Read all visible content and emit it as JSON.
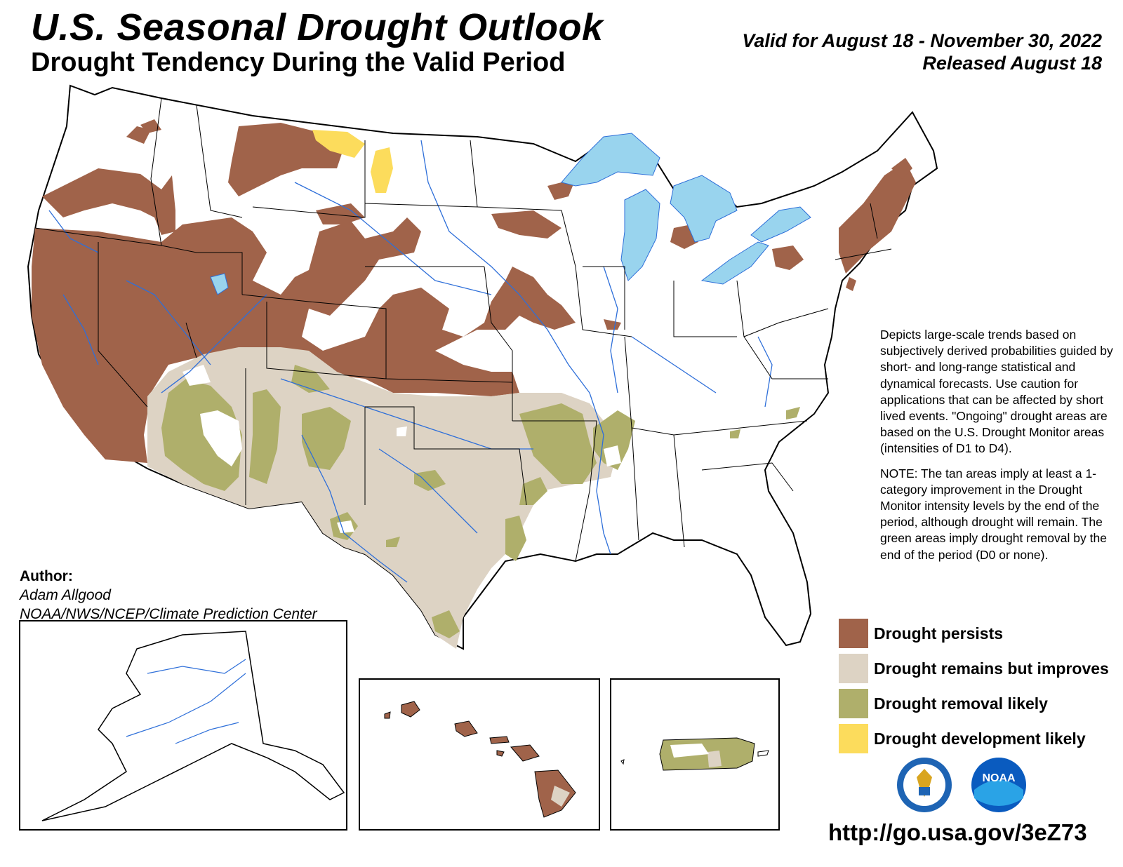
{
  "header": {
    "title": "U.S. Seasonal Drought Outlook",
    "subtitle": "Drought Tendency During the Valid Period",
    "valid_line": "Valid for August 18 - November 30, 2022",
    "released_line": "Released August 18"
  },
  "description": {
    "paragraph1": "Depicts large-scale trends based on subjectively derived probabilities guided by short- and long-range statistical and dynamical forecasts. Use caution for applications that can be affected by short lived events. \"Ongoing\" drought areas are based on the U.S. Drought Monitor areas (intensities of D1 to D4).",
    "paragraph2": "NOTE: The tan areas imply at least a 1-category improvement in the Drought Monitor intensity levels by the end of the period, although drought will remain. The green areas imply drought removal by the end of the period (D0 or none)."
  },
  "author": {
    "label": "Author:",
    "name": "Adam Allgood",
    "org": "NOAA/NWS/NCEP/Climate Prediction Center"
  },
  "legend": [
    {
      "label": "Drought persists",
      "color": "#a0634a"
    },
    {
      "label": "Drought remains but improves",
      "color": "#ddd3c4"
    },
    {
      "label": "Drought removal likely",
      "color": "#afaf6b"
    },
    {
      "label": "Drought development likely",
      "color": "#fcdc5c"
    }
  ],
  "colors": {
    "water": "#99d4ee",
    "river": "#2e6fd9",
    "state_border": "#000000"
  },
  "logos": {
    "commerce_seal": "department-of-commerce-seal",
    "noaa_logo_text": "NOAA"
  },
  "url": "http://go.usa.gov/3eZ73"
}
